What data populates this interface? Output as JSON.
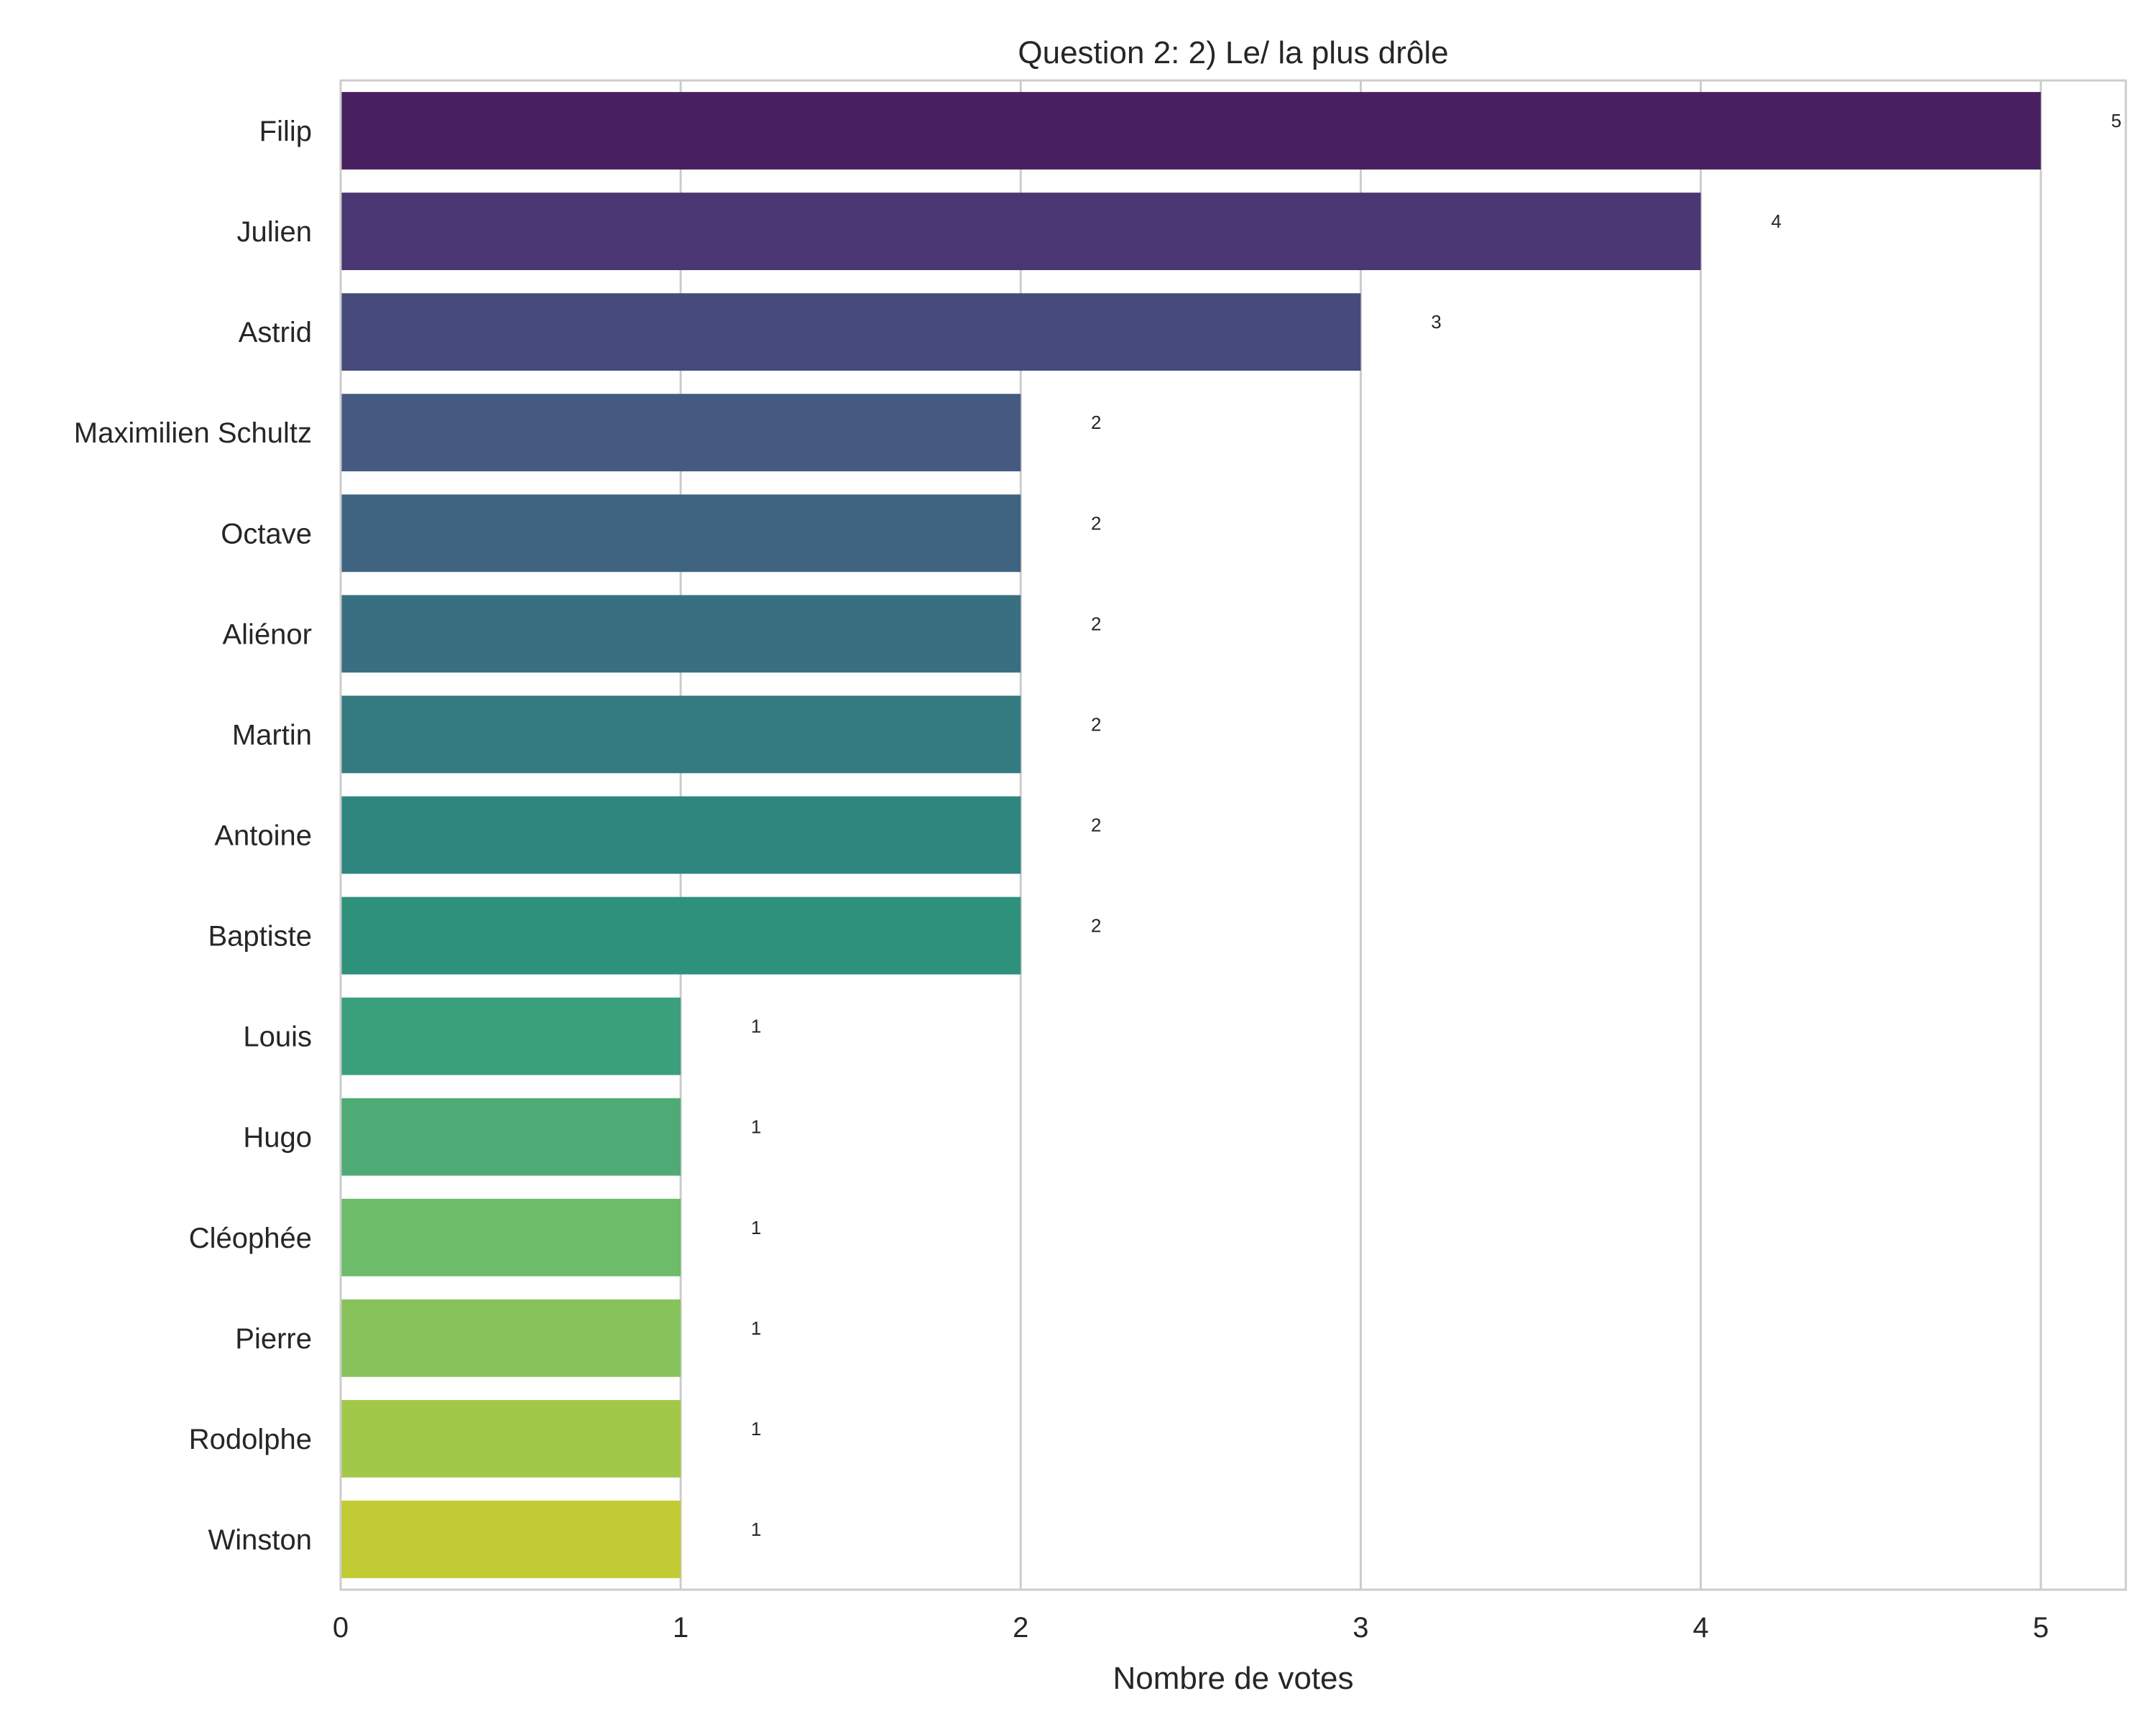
{
  "chart_data": {
    "type": "bar",
    "orientation": "horizontal",
    "title": "Question 2: 2) Le/ la plus drôle",
    "xlabel": "Nombre de votes",
    "ylabel": "",
    "xlim": [
      0,
      5.25
    ],
    "xticks": [
      0,
      1,
      2,
      3,
      4,
      5
    ],
    "grid": true,
    "categories": [
      "Filip",
      "Julien",
      "Astrid",
      "Maximilien Schultz",
      "Octave",
      "Aliénor",
      "Martin",
      "Antoine",
      "Baptiste",
      "Louis",
      "Hugo",
      "Cléophée",
      "Pierre",
      "Rodolphe",
      "Winston"
    ],
    "values": [
      5,
      4,
      3,
      2,
      2,
      2,
      2,
      2,
      2,
      1,
      1,
      1,
      1,
      1,
      1
    ],
    "data_labels": [
      "5",
      "4",
      "3",
      "2",
      "2",
      "2",
      "2",
      "2",
      "2",
      "1",
      "1",
      "1",
      "1",
      "1",
      "1"
    ],
    "colors": [
      "#482060",
      "#4A3672",
      "#464B7B",
      "#445A80",
      "#3E6482",
      "#387082",
      "#337B81",
      "#2E867E",
      "#2E917B",
      "#3AA07B",
      "#4FAB75",
      "#6CBC6A",
      "#88C25B",
      "#A2C849",
      "#C2CA34"
    ]
  }
}
